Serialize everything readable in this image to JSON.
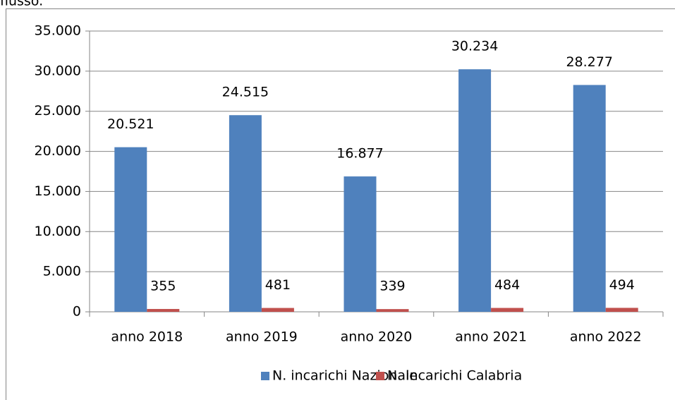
{
  "caption": "flusso.",
  "chart_data": {
    "type": "bar",
    "categories": [
      "anno 2018",
      "anno 2019",
      "anno 2020",
      "anno 2021",
      "anno 2022"
    ],
    "series": [
      {
        "name": "N. incarichi Nazionale",
        "color": "#4f81bd",
        "values": [
          20521,
          24515,
          16877,
          30234,
          28277
        ],
        "value_labels": [
          "20.521",
          "24.515",
          "16.877",
          "30.234",
          "28.277"
        ]
      },
      {
        "name": "N. incarichi Calabria",
        "color": "#c0504d",
        "values": [
          355,
          481,
          339,
          484,
          494
        ],
        "value_labels": [
          "355",
          "481",
          "339",
          "484",
          "494"
        ]
      }
    ],
    "ylim": [
      0,
      35000
    ],
    "yticks": [
      0,
      {
        "value": 5000,
        "label": "5.000"
      },
      {
        "value": 10000,
        "label": "10.000"
      },
      {
        "value": 15000,
        "label": "15.000"
      },
      {
        "value": 20000,
        "label": "20.000"
      },
      {
        "value": 25000,
        "label": "25.000"
      },
      {
        "value": 30000,
        "label": "30.000"
      },
      {
        "value": 35000,
        "label": "35.000"
      }
    ],
    "grid": true,
    "legend": "bottom"
  }
}
